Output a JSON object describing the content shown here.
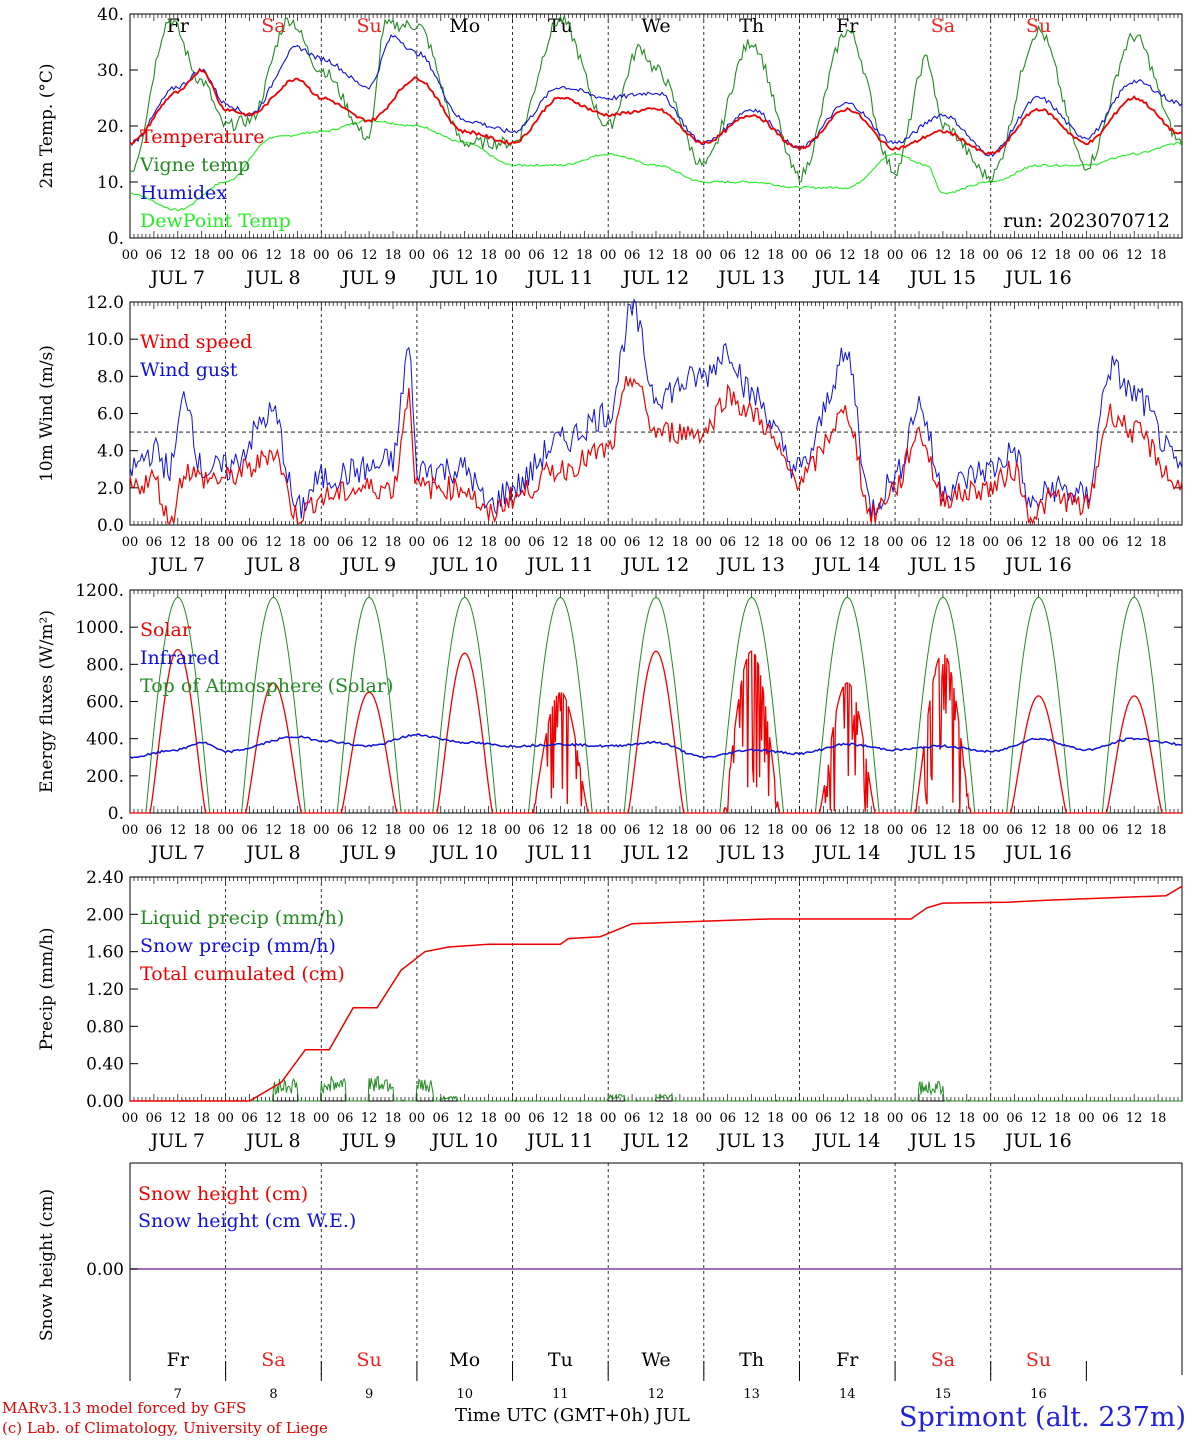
{
  "colors": {
    "red": "#ee0000",
    "blue": "#1010dd",
    "dark_green": "#228b22",
    "light_green": "#22ee22",
    "purple": "#7f3f9f",
    "weekend": "#ee2222",
    "weekday": "#000000"
  },
  "days": [
    {
      "abbr": "Fr",
      "date": "7",
      "month_label": "JUL  7",
      "weekend": false
    },
    {
      "abbr": "Sa",
      "date": "8",
      "month_label": "JUL  8",
      "weekend": true
    },
    {
      "abbr": "Su",
      "date": "9",
      "month_label": "JUL  9",
      "weekend": true
    },
    {
      "abbr": "Mo",
      "date": "10",
      "month_label": "JUL 10",
      "weekend": false
    },
    {
      "abbr": "Tu",
      "date": "11",
      "month_label": "JUL 11",
      "weekend": false
    },
    {
      "abbr": "We",
      "date": "12",
      "month_label": "JUL 12",
      "weekend": false
    },
    {
      "abbr": "Th",
      "date": "13",
      "month_label": "JUL 13",
      "weekend": false
    },
    {
      "abbr": "Fr",
      "date": "14",
      "month_label": "JUL 14",
      "weekend": false
    },
    {
      "abbr": "Sa",
      "date": "15",
      "month_label": "JUL 15",
      "weekend": true
    },
    {
      "abbr": "Su",
      "date": "16",
      "month_label": "JUL 16",
      "weekend": true
    }
  ],
  "hour_ticks": [
    "00",
    "06",
    "12",
    "18"
  ],
  "chart_data": [
    {
      "type": "line",
      "ylabel": "2m Temp. (°C)",
      "ylim": [
        0,
        40
      ],
      "yticks": [
        "0.",
        "10.",
        "20.",
        "30.",
        "40."
      ],
      "run_label": "run: 2023070712",
      "legend": [
        {
          "name": "Temperature",
          "color": "#ee0000"
        },
        {
          "name": "Vigne temp",
          "color": "#228b22"
        },
        {
          "name": "Humidex",
          "color": "#1010dd"
        },
        {
          "name": "DewPoint Temp",
          "color": "#22ee22"
        }
      ],
      "series": [
        {
          "name": "Temperature",
          "color": "#ee0000",
          "points": [
            [
              0,
              17
            ],
            [
              12,
              26
            ],
            [
              18,
              30
            ],
            [
              24,
              23
            ],
            [
              30,
              22
            ],
            [
              42,
              28.5
            ],
            [
              48,
              25
            ],
            [
              60,
              21
            ],
            [
              72,
              28.5
            ],
            [
              84,
              19
            ],
            [
              96,
              17
            ],
            [
              108,
              25
            ],
            [
              120,
              22
            ],
            [
              132,
              23
            ],
            [
              144,
              17
            ],
            [
              156,
              22
            ],
            [
              168,
              16
            ],
            [
              180,
              23
            ],
            [
              192,
              16
            ],
            [
              204,
              19
            ],
            [
              216,
              15
            ],
            [
              228,
              23
            ],
            [
              240,
              17
            ],
            [
              252,
              25
            ],
            [
              264,
              18.5
            ]
          ]
        },
        {
          "name": "Humidex",
          "color": "#1010dd",
          "points": [
            [
              0,
              17
            ],
            [
              12,
              27
            ],
            [
              18,
              30
            ],
            [
              24,
              24
            ],
            [
              30,
              22
            ],
            [
              42,
              34
            ],
            [
              48,
              32
            ],
            [
              60,
              27
            ],
            [
              66,
              36
            ],
            [
              72,
              33
            ],
            [
              84,
              21
            ],
            [
              96,
              19
            ],
            [
              108,
              27
            ],
            [
              120,
              25
            ],
            [
              132,
              26
            ],
            [
              144,
              17
            ],
            [
              156,
              23
            ],
            [
              168,
              16
            ],
            [
              180,
              24
            ],
            [
              192,
              17
            ],
            [
              204,
              22
            ],
            [
              216,
              15
            ],
            [
              228,
              25
            ],
            [
              240,
              18
            ],
            [
              252,
              28
            ],
            [
              264,
              24
            ]
          ]
        },
        {
          "name": "Vigne temp",
          "color": "#228b22",
          "points": [
            [
              0,
              12
            ],
            [
              10,
              39
            ],
            [
              18,
              28
            ],
            [
              24,
              20
            ],
            [
              30,
              21
            ],
            [
              40,
              39
            ],
            [
              48,
              30
            ],
            [
              60,
              18
            ],
            [
              64,
              38
            ],
            [
              72,
              38
            ],
            [
              84,
              17
            ],
            [
              96,
              17
            ],
            [
              108,
              39
            ],
            [
              120,
              20
            ],
            [
              128,
              34
            ],
            [
              132,
              30
            ],
            [
              144,
              13
            ],
            [
              156,
              35
            ],
            [
              168,
              11
            ],
            [
              180,
              37
            ],
            [
              192,
              12
            ],
            [
              200,
              32
            ],
            [
              204,
              20
            ],
            [
              216,
              11
            ],
            [
              228,
              37
            ],
            [
              240,
              13
            ],
            [
              252,
              36
            ],
            [
              264,
              17
            ]
          ]
        },
        {
          "name": "DewPoint Temp",
          "color": "#22ee22",
          "points": [
            [
              0,
              8
            ],
            [
              12,
              5
            ],
            [
              24,
              10
            ],
            [
              36,
              18
            ],
            [
              48,
              19
            ],
            [
              60,
              21
            ],
            [
              72,
              20
            ],
            [
              84,
              17
            ],
            [
              96,
              13
            ],
            [
              108,
              13
            ],
            [
              120,
              15
            ],
            [
              132,
              13
            ],
            [
              144,
              10
            ],
            [
              156,
              10
            ],
            [
              168,
              9
            ],
            [
              180,
              9
            ],
            [
              192,
              15
            ],
            [
              200,
              13
            ],
            [
              204,
              8
            ],
            [
              216,
              10
            ],
            [
              228,
              13
            ],
            [
              240,
              13
            ],
            [
              252,
              15
            ],
            [
              264,
              17
            ]
          ]
        }
      ]
    },
    {
      "type": "line",
      "ylabel": "10m Wind (m/s)",
      "ylim": [
        0,
        12
      ],
      "yticks": [
        "0.0",
        "2.0",
        "4.0",
        "6.0",
        "8.0",
        "10.0",
        "12.0"
      ],
      "reference_line": 5,
      "legend": [
        {
          "name": "Wind speed",
          "color": "#ee0000"
        },
        {
          "name": "Wind gust",
          "color": "#1010dd"
        }
      ],
      "series": [
        {
          "name": "Wind speed",
          "color": "#ee0000",
          "points": [
            [
              0,
              2
            ],
            [
              6,
              2.5
            ],
            [
              10,
              0.2
            ],
            [
              14,
              3
            ],
            [
              18,
              2.5
            ],
            [
              24,
              2.5
            ],
            [
              30,
              3
            ],
            [
              36,
              4
            ],
            [
              42,
              0.5
            ],
            [
              48,
              1.5
            ],
            [
              60,
              2
            ],
            [
              66,
              2
            ],
            [
              70,
              7
            ],
            [
              72,
              2
            ],
            [
              84,
              2
            ],
            [
              90,
              0.5
            ],
            [
              96,
              1.5
            ],
            [
              108,
              3
            ],
            [
              120,
              4
            ],
            [
              126,
              8
            ],
            [
              132,
              5
            ],
            [
              144,
              5
            ],
            [
              150,
              7
            ],
            [
              156,
              6
            ],
            [
              168,
              2.5
            ],
            [
              180,
              6
            ],
            [
              186,
              0.5
            ],
            [
              192,
              2
            ],
            [
              198,
              5
            ],
            [
              204,
              1.5
            ],
            [
              216,
              2
            ],
            [
              222,
              3
            ],
            [
              226,
              0.5
            ],
            [
              232,
              1.5
            ],
            [
              240,
              1
            ],
            [
              246,
              6
            ],
            [
              252,
              5
            ],
            [
              264,
              2
            ]
          ]
        },
        {
          "name": "Wind gust",
          "color": "#1010dd",
          "points": [
            [
              0,
              3
            ],
            [
              6,
              4
            ],
            [
              10,
              3
            ],
            [
              14,
              7
            ],
            [
              18,
              3
            ],
            [
              24,
              3
            ],
            [
              36,
              6
            ],
            [
              42,
              0.8
            ],
            [
              48,
              2.5
            ],
            [
              60,
              3
            ],
            [
              66,
              3.5
            ],
            [
              70,
              9.5
            ],
            [
              72,
              3
            ],
            [
              84,
              3
            ],
            [
              90,
              1
            ],
            [
              96,
              2
            ],
            [
              108,
              4.5
            ],
            [
              120,
              6
            ],
            [
              126,
              11.5
            ],
            [
              132,
              7
            ],
            [
              144,
              8
            ],
            [
              150,
              9.5
            ],
            [
              156,
              7
            ],
            [
              168,
              3
            ],
            [
              180,
              9
            ],
            [
              186,
              1
            ],
            [
              192,
              2.5
            ],
            [
              198,
              6.5
            ],
            [
              204,
              2
            ],
            [
              216,
              3
            ],
            [
              222,
              4
            ],
            [
              226,
              1
            ],
            [
              232,
              2
            ],
            [
              240,
              1.5
            ],
            [
              246,
              8.5
            ],
            [
              252,
              7
            ],
            [
              264,
              3
            ]
          ]
        }
      ]
    },
    {
      "type": "line",
      "ylabel": "Energy fluxes (W/m²)",
      "ylim": [
        0,
        1200
      ],
      "yticks": [
        "0.",
        "200.",
        "400.",
        "600.",
        "800.",
        "1000.",
        "1200."
      ],
      "legend": [
        {
          "name": "Solar",
          "color": "#ee0000"
        },
        {
          "name": "Infrared",
          "color": "#1010dd"
        },
        {
          "name": "Top of Atmosphere (Solar)",
          "color": "#228b22"
        }
      ],
      "solar_peaks": [
        880,
        700,
        650,
        860,
        650,
        870,
        870,
        700,
        860,
        630
      ],
      "toa_peak": 1160,
      "infrared": [
        [
          0,
          300
        ],
        [
          12,
          340
        ],
        [
          18,
          380
        ],
        [
          24,
          330
        ],
        [
          42,
          410
        ],
        [
          48,
          390
        ],
        [
          60,
          360
        ],
        [
          72,
          420
        ],
        [
          84,
          380
        ],
        [
          96,
          360
        ],
        [
          108,
          370
        ],
        [
          120,
          360
        ],
        [
          132,
          380
        ],
        [
          144,
          300
        ],
        [
          156,
          340
        ],
        [
          168,
          320
        ],
        [
          180,
          370
        ],
        [
          192,
          340
        ],
        [
          204,
          360
        ],
        [
          216,
          330
        ],
        [
          228,
          400
        ],
        [
          240,
          340
        ],
        [
          252,
          400
        ],
        [
          264,
          370
        ]
      ]
    },
    {
      "type": "line",
      "ylabel": "Precip (mm/h)",
      "ylim": [
        0,
        2.4
      ],
      "yticks": [
        "0.00",
        "0.40",
        "0.80",
        "1.20",
        "1.60",
        "2.00",
        "2.40"
      ],
      "legend": [
        {
          "name": "Liquid precip (mm/h)",
          "color": "#228b22"
        },
        {
          "name": "Snow precip (mm/h)",
          "color": "#1010dd"
        },
        {
          "name": "Total cumulated (cm)",
          "color": "#ee0000"
        }
      ],
      "cumulated": [
        [
          0,
          0
        ],
        [
          30,
          0
        ],
        [
          38,
          0.2
        ],
        [
          44,
          0.55
        ],
        [
          50,
          0.55
        ],
        [
          56,
          1.0
        ],
        [
          62,
          1.0
        ],
        [
          68,
          1.4
        ],
        [
          74,
          1.6
        ],
        [
          80,
          1.65
        ],
        [
          90,
          1.68
        ],
        [
          108,
          1.68
        ],
        [
          110,
          1.74
        ],
        [
          118,
          1.76
        ],
        [
          126,
          1.9
        ],
        [
          140,
          1.92
        ],
        [
          160,
          1.95
        ],
        [
          196,
          1.95
        ],
        [
          200,
          2.07
        ],
        [
          204,
          2.12
        ],
        [
          220,
          2.13
        ],
        [
          230,
          2.15
        ],
        [
          260,
          2.2
        ],
        [
          264,
          2.3
        ]
      ],
      "liquid_bursts": [
        [
          36,
          42,
          0.25
        ],
        [
          48,
          54,
          0.28
        ],
        [
          60,
          66,
          0.3
        ],
        [
          72,
          76,
          0.25
        ],
        [
          78,
          82,
          0.05
        ],
        [
          120,
          124,
          0.07
        ],
        [
          132,
          136,
          0.08
        ],
        [
          198,
          204,
          0.22
        ]
      ]
    },
    {
      "type": "line",
      "ylabel": "Snow height (cm)",
      "ytick": "0.00",
      "legend": [
        {
          "name": "Snow height (cm)",
          "color": "#ee0000"
        },
        {
          "name": "Snow height (cm W.E.)",
          "color": "#1010dd"
        }
      ],
      "value": 0
    }
  ],
  "footer": {
    "model_line": "MARv3.13 model forced by GFS",
    "lab_line": "(c) Lab. of Climatology, University of Liege",
    "axis_title": "Time UTC (GMT+0h) JUL",
    "station": "Sprimont (alt. 237m)"
  }
}
